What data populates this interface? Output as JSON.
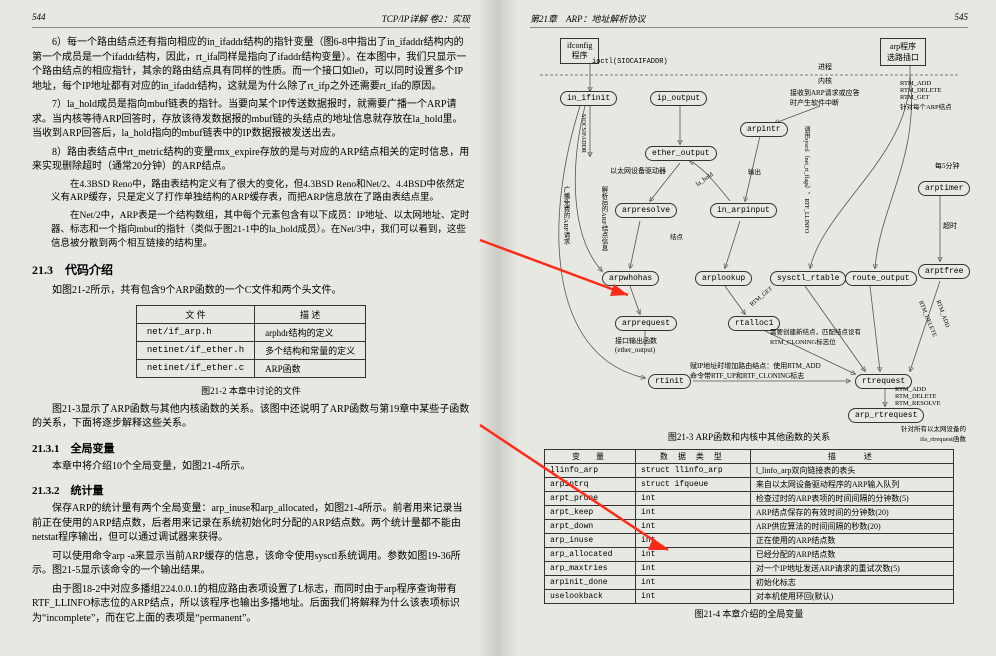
{
  "left": {
    "hdr_page": "544",
    "hdr_title": "TCP/IP详解  卷2：实现",
    "p6": "6）每一个路由结点还有指向相应的in_ifaddr结构的指针变量（图6-8中指出了in_ifaddr结构内的第一个成员是一个ifaddr结构，因此，rt_ifa同样是指向了ifaddr结构变量）。在本图中，我们只显示一个路由结点的相应指针，其余的路由结点具有同样的性质。而一个接口如le0，可以同时设置多个IP地址，每个IP地址都有对应的in_ifaddr结构，这就是为什么除了rt_ifp之外还需要rt_ifa的原因。",
    "p7": "7）la_hold成员是指向mbuf链表的指针。当要向某个IP传送数据报时，就需要广播一个ARP请求。当内核等待ARP回答时，存放该待发数据报的mbuf链的头结点的地址信息就存放在la_hold里。当收到ARP回答后，la_hold指向的mbuf链表中的IP数据报被发送出去。",
    "p8": "8）路由表结点中rt_metric结构的变量rmx_expire存放的是与对应的ARP结点相关的定时信息，用来实现删除超时（通常20分钟）的ARP结点。",
    "pbsd": "在4.3BSD Reno中，路由表结构定义有了很大的变化，但4.3BSD Reno和Net/2、4.4BSD中依然定义有ARP缓存，只是定义了打作单独结构的ARP缓存表，而把ARP信息放在了路由表结点里。",
    "pnet2": "在Net/2中，ARP表是一个结构数组，其中每个元素包含有以下成员：IP地址、以太网地址、定时器、标志和一个指向mbuf的指针（类似于图21-1中的la_hold成员）。在Net/3中，我们可以看到，这些信息被分散到两个相互链接的结构里。",
    "s213": "21.3　代码介绍",
    "p213a": "如图21-2所示，共有包含9个ARP函数的一个C文件和两个头文件。",
    "table": {
      "cols": [
        "文  件",
        "描    述"
      ],
      "rows": [
        [
          "net/if_arp.h",
          "arphdr结构的定义"
        ],
        [
          "netinet/if_ether.h",
          "多个结构和常量的定义"
        ],
        [
          "netinet/if_ether.c",
          "ARP函数"
        ]
      ],
      "caption": "图21-2  本章中讨论的文件"
    },
    "p213b": "图21-3显示了ARP函数与其他内核函数的关系。该图中还说明了ARP函数与第19章中某些子函数的关系，下面将逐步解释这些关系。",
    "s2131": "21.3.1　全局变量",
    "p2131": "本章中将介绍10个全局变量，如图21-4所示。",
    "s2132": "21.3.2　统计量",
    "p2132a": "保存ARP的统计量有两个全局变量：arp_inuse和arp_allocated，如图21-4所示。前者用来记录当前正在使用的ARP结点数，后者用来记录在系统初始化时分配的ARP结点数。两个统计量都不能由netstat程序输出，但可以通过调试器来获得。",
    "p2132b": "可以使用命令arp -a来显示当前ARP缓存的信息，该命令使用sysctl系统调用。参数如图19-36所示。图21-5显示该命令的一个输出结果。",
    "p2132c": "由于图18-2中对应多播组224.0.0.1的相应路由表项设置了L标志，而同时由于arp程序查询带有RTF_LLINFO标志位的ARP结点，所以该程序也输出多播地址。后面我们将解释为什么该表项标识为“incomplete”，而在它上面的表项是“permanent”。"
  },
  "right": {
    "hdr_title": "第21章　ARP：地址解析协议",
    "hdr_page": "545",
    "fig_caption": "图21-3  ARP函数和内核中其他函数的关系",
    "diagram": {
      "ifconfig": "ifconfig\n程序",
      "ioctl": "ioctl(SIOCAIFADDR)",
      "arpprog": "arp程序\n选路插口",
      "process": "进程",
      "kernel": "内核",
      "in_ifinit": "in_ifinit",
      "ip_output": "ip_output",
      "ether_output": "ether_output",
      "arpintr": "arpintr",
      "arpresolve": "arpresolve",
      "in_arpinput": "in_arpinput",
      "arpwhohas": "arpwhohas",
      "arplookup": "arplookup",
      "sysctl_rtable": "sysctl_rtable",
      "route_output": "route_output",
      "arprequest": "arprequest",
      "rtalloc1": "rtalloc1",
      "ether_output_label": "接口输出函数\n(ether_output)",
      "rtinit": "rtinit",
      "rtrequest": "rtrequest",
      "arp_rtrequest": "arp_rtrequest",
      "arptimer": "arptimer",
      "arptfree": "arptfree",
      "note_recv": "接收到ARP请求或应答\n时产生软件中断",
      "note_rtm": "RTM_ADD\nRTM_DELETE\nRTM_GET\n针对每个ARP结点",
      "note_every5": "每5分钟",
      "note_timeout": "超时",
      "note_ip": "赋IP地址时增加路由结点：使用RTM_ADD\n命令带RTF_UP和RTF_CLONING标志",
      "note_rtm2": "RTM_ADD\nRTM_DELETE\nRTM_RESOLVE",
      "note_bottom": "针对所有以太网设备的\nifa_rtrequest函数",
      "note_clone": "需要创建新结点，匹配结点设有\nRTM_CLONING标志位",
      "v_sioc": "SIOCSIFADDR",
      "v_hold": "la_hold",
      "v_output": "输出",
      "v_freearp": "广播免费的ARP请求",
      "v_arpinfo": "解析后的ARP结点信息",
      "v_arpresult": "结点",
      "v_rtmget": "RTM_GET",
      "v_rtmadd": "RTM_ADD",
      "v_rtmdel": "RTM_DELETE",
      "v_sysctl": "调用sysctl（net_rt_flags），RTF_LLINFO"
    },
    "vartable": {
      "cols": [
        "变　量",
        "数 据 类 型",
        "描　　述"
      ],
      "rows": [
        [
          "llinfo_arp",
          "struct  llinfo_arp",
          "l_linfo_arp双向链接表的表头"
        ],
        [
          "arpintrq",
          "struct  ifqueue",
          "来自以太网设备驱动程序的ARP输入队列"
        ],
        [
          "arpt_prune",
          "int",
          "检查过时的ARP表项的时间间隔的分钟数(5)"
        ],
        [
          "arpt_keep",
          "int",
          "ARP结点保存的有效时间的分钟数(20)"
        ],
        [
          "arpt_down",
          "int",
          "ARP供应算法的时间间隔的秒数(20)"
        ],
        [
          "arp_inuse",
          "int",
          "正在使用的ARP结点数"
        ],
        [
          "arp_allocated",
          "int",
          "已经分配的ARP结点数"
        ],
        [
          "arp_maxtries",
          "int",
          "对一个IP地址发送ARP请求的重试次数(5)"
        ],
        [
          "arpinit_done",
          "int",
          "初始化标志"
        ],
        [
          "uselookback",
          "int",
          "对本机使用环回(默认)"
        ]
      ],
      "caption": "图21-4  本章介绍的全局变量"
    }
  }
}
